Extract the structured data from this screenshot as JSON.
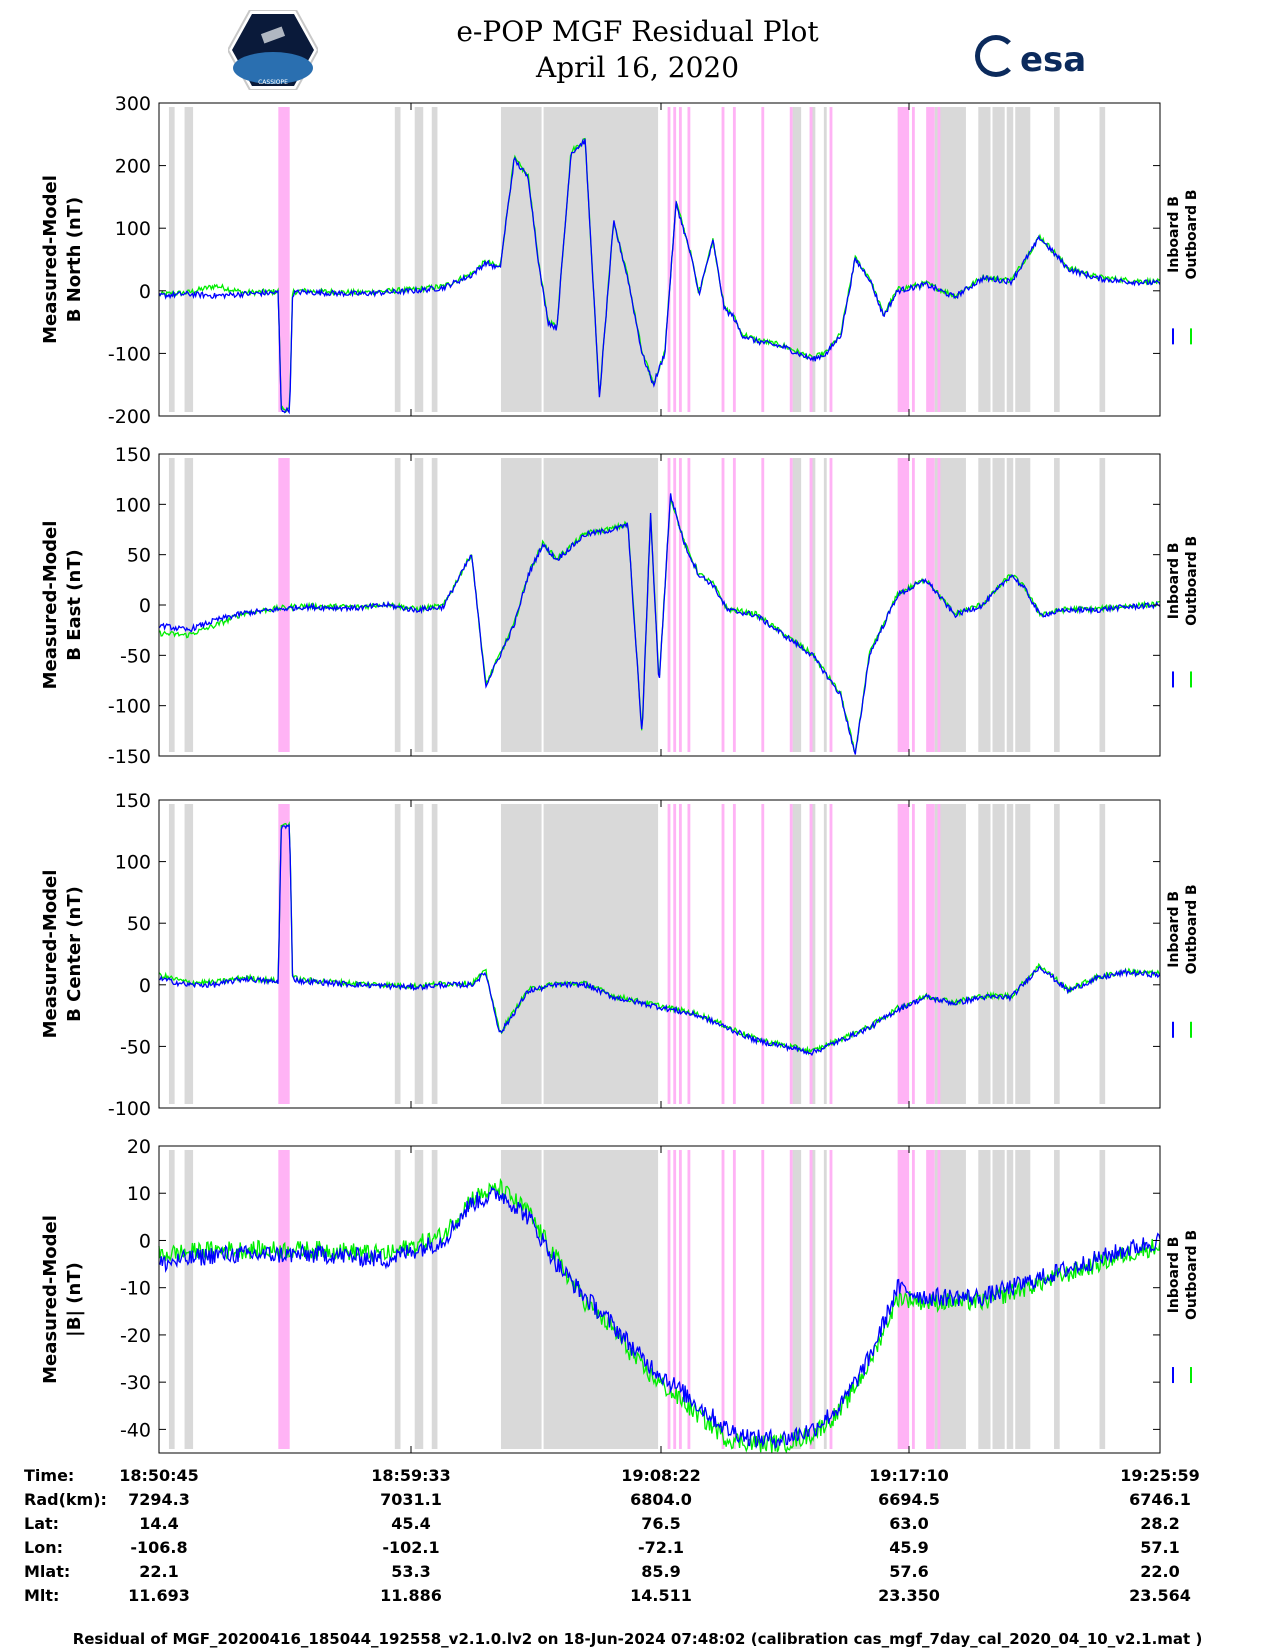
{
  "header": {
    "title_line1": "e-POP MGF Residual Plot",
    "title_line2": "April 16, 2020",
    "logo_left_text": "CASSIOPE",
    "logo_right_text": "esa"
  },
  "colors": {
    "inboard": "#0000ff",
    "outboard": "#00ee00",
    "gray_band": "#d9d9d9",
    "pink_band": "#ffb3f5"
  },
  "chart_data": [
    {
      "type": "line",
      "panel": "B North",
      "ylabel_line1": "Measured-Model",
      "ylabel_line2": "B North (nT)",
      "ylim": [
        -200,
        300
      ],
      "yticks": [
        -200,
        -100,
        0,
        100,
        200,
        300
      ],
      "ytick_labels": [
        "-200",
        "-100",
        "0",
        "100",
        "200",
        "300"
      ],
      "legend": [
        "Inboard B",
        "Outboard B"
      ],
      "xlim": [
        0,
        35.23
      ],
      "x": [
        0,
        1,
        2,
        3,
        4.2,
        4.3,
        4.6,
        4.7,
        5,
        7,
        9,
        10,
        11,
        11.5,
        12,
        12.5,
        13,
        13.4,
        13.7,
        14,
        14.5,
        15,
        15.5,
        16,
        16.5,
        17,
        17.4,
        17.8,
        18.2,
        18.7,
        19,
        19.5,
        19.9,
        20.2,
        20.5,
        21,
        22,
        23,
        23.5,
        24,
        24.5,
        25,
        25.5,
        26,
        27,
        28,
        29,
        30,
        31,
        32,
        33,
        34,
        35.23
      ],
      "series": [
        {
          "name": "Inboard B",
          "values": [
            -8,
            -5,
            -8,
            -5,
            -3,
            -190,
            -192,
            -4,
            -2,
            -5,
            0,
            5,
            25,
            45,
            35,
            210,
            180,
            30,
            -50,
            -60,
            220,
            240,
            -170,
            110,
            20,
            -100,
            -150,
            -100,
            140,
            60,
            -5,
            80,
            -30,
            -40,
            -70,
            -80,
            -90,
            -110,
            -100,
            -70,
            50,
            20,
            -40,
            0,
            10,
            -10,
            20,
            15,
            85,
            35,
            20,
            15,
            12
          ]
        },
        {
          "name": "Outboard B",
          "values": [
            -6,
            -3,
            8,
            -3,
            -1,
            -188,
            -190,
            -2,
            0,
            -3,
            2,
            7,
            27,
            47,
            37,
            212,
            182,
            32,
            -48,
            -58,
            222,
            242,
            -168,
            112,
            22,
            -98,
            -148,
            -98,
            142,
            62,
            -3,
            82,
            -28,
            -38,
            -68,
            -78,
            -88,
            -108,
            -98,
            -68,
            52,
            22,
            -38,
            2,
            12,
            -8,
            22,
            17,
            87,
            37,
            22,
            17,
            14
          ]
        }
      ]
    },
    {
      "type": "line",
      "panel": "B East",
      "ylabel_line1": "Measured-Model",
      "ylabel_line2": "B East (nT)",
      "ylim": [
        -150,
        150
      ],
      "yticks": [
        -150,
        -100,
        -50,
        0,
        50,
        100,
        150
      ],
      "ytick_labels": [
        "-150",
        "-100",
        "-50",
        "0",
        "50",
        "100",
        "150"
      ],
      "legend": [
        "Inboard B",
        "Outboard B"
      ],
      "xlim": [
        0,
        35.23
      ],
      "x": [
        0,
        1,
        2,
        3,
        4,
        5,
        7,
        8,
        9,
        10,
        11,
        11.5,
        12,
        12.5,
        13,
        13.5,
        14,
        15,
        16,
        16.5,
        17,
        17.3,
        17.6,
        18,
        18.5,
        19,
        19.5,
        20,
        21,
        22,
        23,
        24,
        24.5,
        25,
        25.5,
        26,
        27,
        28,
        29,
        30,
        30.5,
        31,
        32,
        33,
        34,
        35.23
      ],
      "series": [
        {
          "name": "Inboard B",
          "values": [
            -20,
            -25,
            -15,
            -8,
            -5,
            -2,
            -3,
            0,
            -5,
            -2,
            50,
            -80,
            -50,
            -20,
            30,
            60,
            45,
            70,
            75,
            80,
            -130,
            90,
            -80,
            110,
            60,
            30,
            20,
            -5,
            -10,
            -30,
            -50,
            -90,
            -150,
            -50,
            -20,
            10,
            25,
            -10,
            0,
            30,
            15,
            -10,
            -5,
            -5,
            -2,
            0
          ]
        },
        {
          "name": "Outboard B",
          "values": [
            -28,
            -30,
            -20,
            -8,
            -4,
            -1,
            -2,
            1,
            -4,
            -1,
            51,
            -79,
            -49,
            -19,
            31,
            61,
            46,
            71,
            76,
            81,
            -128,
            91,
            -78,
            108,
            61,
            31,
            21,
            -4,
            -9,
            -29,
            -49,
            -89,
            -148,
            -49,
            -19,
            11,
            26,
            -9,
            1,
            31,
            16,
            -9,
            -4,
            -4,
            -1,
            1
          ]
        }
      ]
    },
    {
      "type": "line",
      "panel": "B Center",
      "ylabel_line1": "Measured-Model",
      "ylabel_line2": "B Center (nT)",
      "ylim": [
        -100,
        150
      ],
      "yticks": [
        -100,
        -50,
        0,
        50,
        100,
        150
      ],
      "ytick_labels": [
        "-100",
        "-50",
        "0",
        "50",
        "100",
        "150"
      ],
      "legend": [
        "Inboard B",
        "Outboard B"
      ],
      "xlim": [
        0,
        35.23
      ],
      "x": [
        0,
        1,
        2,
        3,
        4.2,
        4.3,
        4.6,
        4.7,
        5,
        7,
        9,
        10,
        11,
        11.5,
        12,
        13,
        14,
        15,
        16,
        17,
        18,
        19,
        20,
        21,
        22,
        23,
        24,
        25,
        26,
        27,
        28,
        29,
        30,
        31,
        32,
        33,
        34,
        35.23
      ],
      "series": [
        {
          "name": "Inboard B",
          "values": [
            5,
            0,
            0,
            5,
            2,
            128,
            128,
            5,
            3,
            0,
            -2,
            0,
            0,
            10,
            -40,
            -5,
            0,
            0,
            -10,
            -15,
            -20,
            -25,
            -35,
            -45,
            -50,
            -55,
            -45,
            -35,
            -20,
            -10,
            -15,
            -10,
            -10,
            15,
            -5,
            5,
            10,
            8
          ]
        },
        {
          "name": "Outboard B",
          "values": [
            8,
            2,
            2,
            6,
            3,
            130,
            130,
            6,
            4,
            1,
            -1,
            1,
            1,
            11,
            -39,
            -4,
            1,
            1,
            -9,
            -14,
            -19,
            -24,
            -34,
            -44,
            -49,
            -54,
            -44,
            -34,
            -19,
            -9,
            -14,
            -9,
            -9,
            16,
            -4,
            6,
            11,
            9
          ]
        }
      ]
    },
    {
      "type": "line",
      "panel": "|B|",
      "ylabel_line1": "Measured-Model",
      "ylabel_line2": "|B| (nT)",
      "ylim": [
        -45,
        20
      ],
      "yticks": [
        -40,
        -30,
        -20,
        -10,
        0,
        10,
        20
      ],
      "ytick_labels": [
        "-40",
        "-30",
        "-20",
        "-10",
        "0",
        "10",
        "20"
      ],
      "legend": [
        "Inboard B",
        "Outboard B"
      ],
      "xlim": [
        0,
        35.23
      ],
      "x": [
        0,
        2,
        4,
        6,
        8,
        10,
        11,
        12,
        13,
        14,
        15,
        16,
        17,
        18,
        19,
        20,
        21,
        22,
        23,
        24,
        25,
        26,
        27,
        28,
        29,
        30,
        31,
        32,
        33,
        34,
        35.23
      ],
      "series": [
        {
          "name": "Inboard B",
          "values": [
            -5,
            -3,
            -3,
            -3,
            -4,
            0,
            8,
            10,
            5,
            -5,
            -12,
            -18,
            -25,
            -30,
            -35,
            -40,
            -42,
            -42,
            -40,
            -35,
            -25,
            -10,
            -12,
            -12,
            -12,
            -10,
            -8,
            -6,
            -4,
            -2,
            0
          ]
        },
        {
          "name": "Outboard B",
          "values": [
            -3,
            -2,
            -2,
            -2,
            -3,
            1,
            9,
            11,
            6,
            -4,
            -13,
            -19,
            -27,
            -32,
            -37,
            -42,
            -43,
            -43,
            -41,
            -36,
            -26,
            -12,
            -13,
            -13,
            -13,
            -11,
            -9,
            -7,
            -5,
            -3,
            -1
          ]
        }
      ]
    }
  ],
  "bands": {
    "gray": [
      [
        0.35,
        0.55
      ],
      [
        0.9,
        1.2
      ],
      [
        8.3,
        8.5
      ],
      [
        9.0,
        9.3
      ],
      [
        9.6,
        9.8
      ],
      [
        12.0,
        17.6
      ],
      [
        22.3,
        22.6
      ],
      [
        22.9,
        23.1
      ],
      [
        23.4,
        23.5
      ],
      [
        26.0,
        26.2
      ],
      [
        27.3,
        28.4
      ],
      [
        28.8,
        30.7
      ],
      [
        31.5,
        31.7
      ],
      [
        33.1,
        33.3
      ]
    ],
    "gray_boundaries": [
      12.0,
      13.5,
      17.6,
      28.8,
      29.3,
      29.8,
      30.1,
      30.7
    ],
    "pink": [
      [
        4.2,
        4.6
      ],
      [
        17.9,
        18.0
      ],
      [
        18.1,
        18.2
      ],
      [
        18.3,
        18.4
      ],
      [
        18.6,
        18.7
      ],
      [
        19.8,
        19.9
      ],
      [
        20.2,
        20.3
      ],
      [
        21.2,
        21.3
      ],
      [
        22.2,
        22.3
      ],
      [
        22.9,
        23.0
      ],
      [
        23.6,
        23.7
      ],
      [
        26.0,
        26.4
      ],
      [
        26.5,
        26.6
      ],
      [
        27.0,
        27.3
      ],
      [
        27.4,
        27.5
      ]
    ]
  },
  "info_table": {
    "labels": [
      "Time:",
      "Rad(km):",
      "Lat:",
      "Lon:",
      "Mlat:",
      "Mlt:"
    ],
    "columns": [
      [
        "18:50:45",
        "7294.3",
        "14.4",
        "-106.8",
        "22.1",
        "11.693"
      ],
      [
        "18:59:33",
        "7031.1",
        "45.4",
        "-102.1",
        "53.3",
        "11.886"
      ],
      [
        "19:08:22",
        "6804.0",
        "76.5",
        "-72.1",
        "85.9",
        "14.511"
      ],
      [
        "19:17:10",
        "6694.5",
        "63.0",
        "45.9",
        "57.6",
        "23.350"
      ],
      [
        "19:25:59",
        "6746.1",
        "28.2",
        "57.1",
        "22.0",
        "23.564"
      ]
    ]
  },
  "footer": "Residual of MGF_20200416_185044_192558_v2.1.0.lv2 on 18-Jun-2024 07:48:02 (calibration cas_mgf_7day_cal_2020_04_10_v2.1.mat )"
}
